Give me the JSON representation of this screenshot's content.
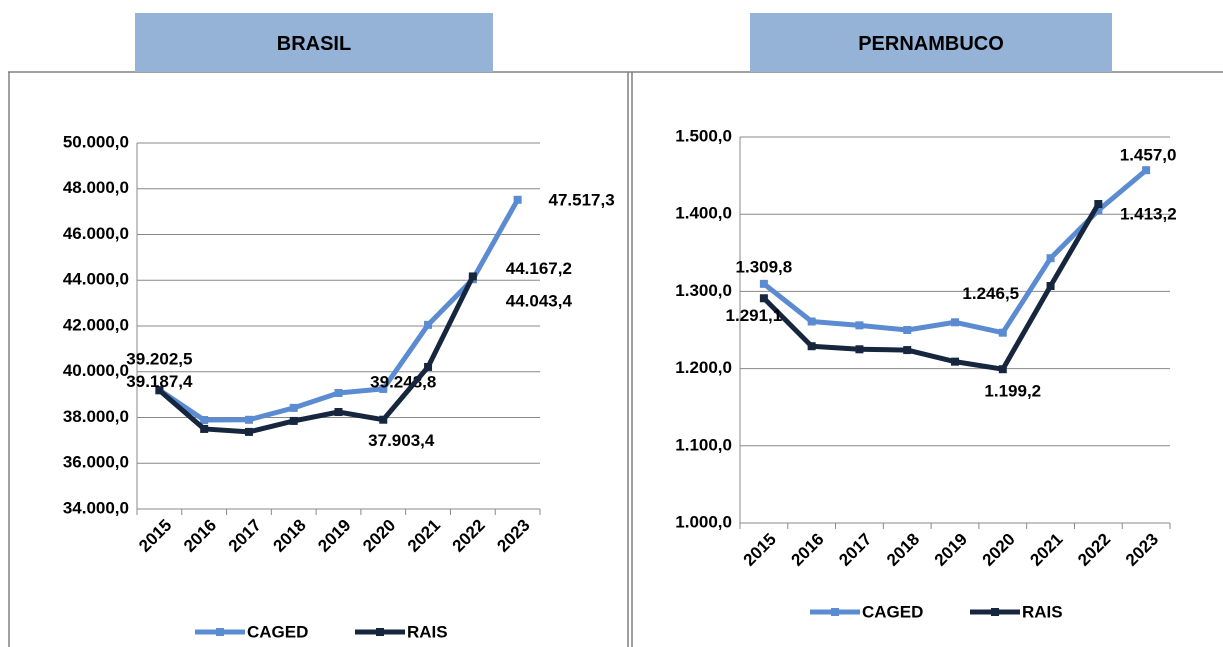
{
  "chart_data": [
    {
      "type": "line",
      "title": "BRASIL",
      "categories": [
        "2015",
        "2016",
        "2017",
        "2018",
        "2019",
        "2020",
        "2021",
        "2022",
        "2023"
      ],
      "series": [
        {
          "name": "CAGED",
          "color": "#5b8bd0",
          "values": [
            39202.5,
            37890,
            37900,
            38420,
            39070,
            39248.8,
            42050,
            44043.4,
            47517.3
          ],
          "value_labels": [
            "39.202,5",
            null,
            null,
            null,
            null,
            "39.248,8",
            null,
            "44.043,4",
            "47.517,3"
          ]
        },
        {
          "name": "RAIS",
          "color": "#17263f",
          "values": [
            39187.4,
            37500,
            37370,
            37850,
            38240,
            37903.4,
            40210,
            44167.2,
            null
          ],
          "value_labels": [
            "39.187,4",
            null,
            null,
            null,
            null,
            "37.903,4",
            null,
            "44.167,2",
            null
          ]
        }
      ],
      "ylim": [
        34000,
        50000
      ],
      "yticks": [
        {
          "value": 34000,
          "label": "34.000,0"
        },
        {
          "value": 36000,
          "label": "36.000,0"
        },
        {
          "value": 38000,
          "label": "38.000,0"
        },
        {
          "value": 40000,
          "label": "40.000,0"
        },
        {
          "value": 42000,
          "label": "42.000,0"
        },
        {
          "value": 44000,
          "label": "44.000,0"
        },
        {
          "value": 46000,
          "label": "46.000,0"
        },
        {
          "value": 48000,
          "label": "48.000,0"
        },
        {
          "value": 50000,
          "label": "50.000,0"
        }
      ],
      "grid": true,
      "legend": "bottom"
    },
    {
      "type": "line",
      "title": "PERNAMBUCO",
      "categories": [
        "2015",
        "2016",
        "2017",
        "2018",
        "2019",
        "2020",
        "2021",
        "2022",
        "2023"
      ],
      "series": [
        {
          "name": "CAGED",
          "color": "#5b8bd0",
          "values": [
            1309.8,
            1261,
            1256,
            1250,
            1260,
            1246.5,
            1343,
            1405,
            1457.0
          ],
          "value_labels": [
            "1.309,8",
            null,
            null,
            null,
            null,
            "1.246,5",
            null,
            null,
            "1.457,0"
          ]
        },
        {
          "name": "RAIS",
          "color": "#17263f",
          "values": [
            1291.1,
            1229,
            1225,
            1224,
            1209,
            1199.2,
            1307,
            1413.2,
            null
          ],
          "value_labels": [
            "1.291,1",
            null,
            null,
            null,
            null,
            "1.199,2",
            null,
            "1.413,2",
            null
          ]
        }
      ],
      "ylim": [
        1000,
        1500
      ],
      "yticks": [
        {
          "value": 1000,
          "label": "1.000,0"
        },
        {
          "value": 1100,
          "label": "1.100,0"
        },
        {
          "value": 1200,
          "label": "1.200,0"
        },
        {
          "value": 1300,
          "label": "1.300,0"
        },
        {
          "value": 1400,
          "label": "1.400,0"
        },
        {
          "value": 1500,
          "label": "1.500,0"
        }
      ],
      "grid": true,
      "legend": "bottom"
    }
  ]
}
